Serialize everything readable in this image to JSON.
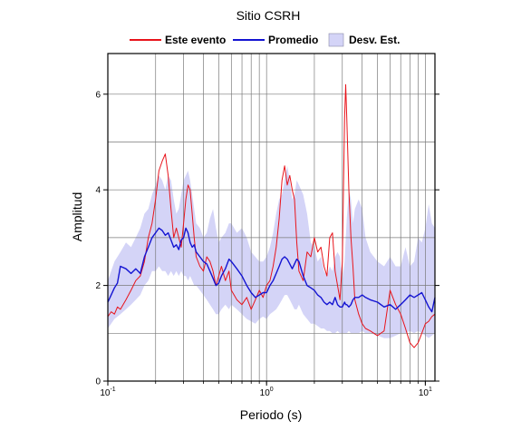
{
  "chart_data": {
    "type": "line",
    "title": "Sitio CSRH",
    "xlabel": "Periodo (s)",
    "ylabel": "Amplitud",
    "xscale": "log",
    "xlim": [
      0.1,
      11.5
    ],
    "ylim": [
      0,
      6.85
    ],
    "yticks": [
      0,
      2,
      4,
      6
    ],
    "xticks": [
      {
        "base": "10",
        "exp": "-1"
      },
      {
        "base": "10",
        "exp": "0"
      },
      {
        "base": "10",
        "exp": "1"
      }
    ],
    "grid": true,
    "legend_position": "top",
    "legend": [
      "Este evento",
      "Promedio",
      "Desv. Est."
    ],
    "colors": {
      "event": "#e8141b",
      "mean": "#1414d2",
      "band": "#d4d4f7"
    },
    "series": [
      {
        "name": "Este evento",
        "x": [
          0.1,
          0.105,
          0.11,
          0.115,
          0.12,
          0.13,
          0.14,
          0.15,
          0.16,
          0.17,
          0.18,
          0.19,
          0.2,
          0.21,
          0.22,
          0.23,
          0.24,
          0.25,
          0.26,
          0.27,
          0.28,
          0.29,
          0.3,
          0.31,
          0.32,
          0.33,
          0.34,
          0.35,
          0.36,
          0.38,
          0.4,
          0.42,
          0.44,
          0.46,
          0.48,
          0.5,
          0.52,
          0.55,
          0.58,
          0.6,
          0.65,
          0.7,
          0.75,
          0.8,
          0.85,
          0.9,
          0.95,
          1.0,
          1.05,
          1.1,
          1.15,
          1.2,
          1.25,
          1.3,
          1.35,
          1.4,
          1.45,
          1.5,
          1.55,
          1.6,
          1.7,
          1.8,
          1.9,
          2.0,
          2.1,
          2.2,
          2.3,
          2.4,
          2.5,
          2.6,
          2.7,
          2.8,
          2.9,
          3.0,
          3.05,
          3.1,
          3.15,
          3.2,
          3.3,
          3.4,
          3.5,
          3.6,
          3.8,
          4.0,
          4.2,
          4.5,
          5.0,
          5.5,
          6.0,
          6.5,
          7.0,
          7.5,
          8.0,
          8.5,
          9.0,
          9.5,
          10.0,
          10.5,
          11.0,
          11.5
        ],
        "values": [
          1.35,
          1.45,
          1.4,
          1.55,
          1.5,
          1.7,
          1.9,
          2.1,
          2.2,
          2.5,
          3.0,
          3.3,
          3.8,
          4.4,
          4.6,
          4.75,
          4.3,
          3.6,
          3.0,
          3.2,
          3.0,
          2.8,
          3.3,
          3.8,
          4.1,
          4.0,
          3.5,
          3.0,
          2.6,
          2.4,
          2.3,
          2.6,
          2.5,
          2.3,
          2.0,
          2.2,
          2.4,
          2.1,
          2.3,
          1.9,
          1.7,
          1.6,
          1.75,
          1.5,
          1.7,
          1.9,
          1.75,
          2.0,
          2.1,
          2.4,
          2.8,
          3.4,
          4.2,
          4.5,
          4.1,
          4.3,
          4.0,
          3.8,
          2.9,
          2.3,
          2.1,
          2.7,
          2.6,
          3.0,
          2.7,
          2.8,
          2.4,
          2.2,
          3.0,
          3.1,
          2.3,
          2.0,
          1.7,
          2.5,
          4.0,
          5.5,
          6.2,
          5.5,
          4.0,
          3.0,
          2.4,
          1.7,
          1.4,
          1.2,
          1.1,
          1.05,
          0.95,
          1.05,
          1.9,
          1.6,
          1.4,
          1.1,
          0.8,
          0.7,
          0.8,
          1.0,
          1.2,
          1.25,
          1.35,
          1.4
        ]
      },
      {
        "name": "Promedio",
        "x": [
          0.1,
          0.105,
          0.11,
          0.115,
          0.12,
          0.13,
          0.14,
          0.15,
          0.16,
          0.17,
          0.18,
          0.19,
          0.2,
          0.21,
          0.22,
          0.23,
          0.24,
          0.25,
          0.26,
          0.27,
          0.28,
          0.29,
          0.3,
          0.31,
          0.32,
          0.33,
          0.34,
          0.35,
          0.36,
          0.38,
          0.4,
          0.42,
          0.44,
          0.46,
          0.48,
          0.5,
          0.52,
          0.55,
          0.58,
          0.6,
          0.65,
          0.7,
          0.75,
          0.8,
          0.85,
          0.9,
          0.95,
          1.0,
          1.05,
          1.1,
          1.15,
          1.2,
          1.25,
          1.3,
          1.35,
          1.4,
          1.45,
          1.5,
          1.55,
          1.6,
          1.7,
          1.8,
          1.9,
          2.0,
          2.1,
          2.2,
          2.3,
          2.4,
          2.5,
          2.6,
          2.7,
          2.8,
          2.9,
          3.0,
          3.05,
          3.1,
          3.15,
          3.2,
          3.3,
          3.4,
          3.5,
          3.6,
          3.8,
          4.0,
          4.2,
          4.5,
          5.0,
          5.5,
          6.0,
          6.5,
          7.0,
          7.5,
          8.0,
          8.5,
          9.0,
          9.5,
          10.0,
          10.5,
          11.0,
          11.5
        ],
        "values": [
          1.65,
          1.8,
          1.95,
          2.05,
          2.4,
          2.35,
          2.25,
          2.35,
          2.25,
          2.6,
          2.8,
          3.0,
          3.1,
          3.2,
          3.15,
          3.05,
          3.1,
          2.95,
          2.8,
          2.85,
          2.75,
          2.95,
          3.0,
          3.2,
          3.1,
          2.9,
          2.8,
          2.85,
          2.7,
          2.6,
          2.5,
          2.45,
          2.3,
          2.15,
          2.0,
          2.05,
          2.2,
          2.35,
          2.55,
          2.5,
          2.35,
          2.2,
          2.0,
          1.85,
          1.75,
          1.8,
          1.85,
          1.85,
          2.0,
          2.1,
          2.25,
          2.4,
          2.55,
          2.6,
          2.55,
          2.45,
          2.35,
          2.45,
          2.55,
          2.5,
          2.2,
          2.0,
          1.95,
          1.9,
          1.8,
          1.75,
          1.65,
          1.6,
          1.65,
          1.6,
          1.75,
          1.6,
          1.55,
          1.55,
          1.6,
          1.65,
          1.6,
          1.6,
          1.55,
          1.6,
          1.7,
          1.75,
          1.75,
          1.8,
          1.75,
          1.7,
          1.65,
          1.55,
          1.6,
          1.5,
          1.6,
          1.7,
          1.8,
          1.75,
          1.8,
          1.85,
          1.7,
          1.55,
          1.45,
          1.75
        ]
      }
    ],
    "band": {
      "name": "Desv. Est.",
      "x": [
        0.1,
        0.11,
        0.12,
        0.13,
        0.14,
        0.15,
        0.16,
        0.17,
        0.18,
        0.19,
        0.2,
        0.21,
        0.22,
        0.23,
        0.24,
        0.25,
        0.26,
        0.27,
        0.28,
        0.29,
        0.3,
        0.31,
        0.32,
        0.33,
        0.34,
        0.35,
        0.36,
        0.38,
        0.4,
        0.42,
        0.44,
        0.46,
        0.48,
        0.5,
        0.52,
        0.55,
        0.58,
        0.6,
        0.65,
        0.7,
        0.75,
        0.8,
        0.85,
        0.9,
        0.95,
        1.0,
        1.05,
        1.1,
        1.15,
        1.2,
        1.25,
        1.3,
        1.35,
        1.4,
        1.45,
        1.5,
        1.55,
        1.6,
        1.7,
        1.8,
        1.9,
        2.0,
        2.1,
        2.2,
        2.3,
        2.4,
        2.5,
        2.6,
        2.7,
        2.8,
        2.9,
        3.0,
        3.1,
        3.2,
        3.3,
        3.4,
        3.5,
        3.6,
        3.8,
        4.0,
        4.2,
        4.5,
        5.0,
        5.5,
        6.0,
        6.5,
        7.0,
        7.5,
        8.0,
        8.5,
        9.0,
        9.5,
        10.0,
        10.5,
        11.0,
        11.5
      ],
      "upper": [
        2.1,
        2.5,
        2.7,
        2.9,
        2.8,
        3.0,
        3.2,
        3.5,
        3.6,
        3.9,
        4.1,
        4.3,
        4.2,
        4.0,
        4.3,
        4.2,
        3.8,
        3.5,
        3.6,
        3.9,
        4.2,
        4.3,
        4.4,
        4.2,
        3.9,
        3.6,
        3.3,
        3.2,
        3.0,
        3.1,
        3.4,
        3.6,
        3.2,
        2.9,
        3.0,
        3.1,
        3.3,
        3.3,
        3.1,
        3.2,
        3.0,
        2.7,
        2.6,
        2.5,
        2.5,
        2.6,
        2.8,
        3.1,
        3.5,
        3.8,
        3.9,
        4.2,
        4.5,
        4.2,
        3.8,
        3.9,
        4.2,
        4.1,
        3.9,
        3.5,
        2.9,
        2.8,
        2.5,
        2.6,
        2.3,
        2.2,
        2.4,
        2.3,
        2.6,
        2.7,
        2.6,
        2.1,
        2.5,
        3.4,
        4.0,
        3.8,
        3.3,
        3.6,
        3.8,
        3.6,
        3.0,
        2.7,
        2.5,
        2.4,
        2.6,
        2.4,
        2.4,
        2.8,
        2.4,
        2.5,
        3.0,
        2.9,
        3.2,
        3.7,
        3.3,
        3.2
      ],
      "lower": [
        1.1,
        1.3,
        1.4,
        1.5,
        1.6,
        1.7,
        1.8,
        2.0,
        2.1,
        2.3,
        2.3,
        2.4,
        2.3,
        2.3,
        2.2,
        2.3,
        2.2,
        2.3,
        2.2,
        2.3,
        2.2,
        2.2,
        2.1,
        2.2,
        2.1,
        2.0,
        2.0,
        1.9,
        1.8,
        1.7,
        1.6,
        1.5,
        1.4,
        1.4,
        1.5,
        1.6,
        1.5,
        1.6,
        1.5,
        1.4,
        1.3,
        1.25,
        1.2,
        1.3,
        1.35,
        1.3,
        1.4,
        1.45,
        1.5,
        1.6,
        1.7,
        1.8,
        1.8,
        1.7,
        1.6,
        1.5,
        1.5,
        1.6,
        1.4,
        1.3,
        1.2,
        1.2,
        1.15,
        1.1,
        1.1,
        1.05,
        1.05,
        1.0,
        1.0,
        1.05,
        1.0,
        1.0,
        1.0,
        1.0,
        1.05,
        1.0,
        1.0,
        1.0,
        1.0,
        1.05,
        1.0,
        1.0,
        0.95,
        0.9,
        0.9,
        0.95,
        1.0,
        1.0,
        1.05,
        1.0,
        1.05,
        1.0,
        0.95,
        0.9,
        0.95,
        1.0
      ]
    }
  }
}
